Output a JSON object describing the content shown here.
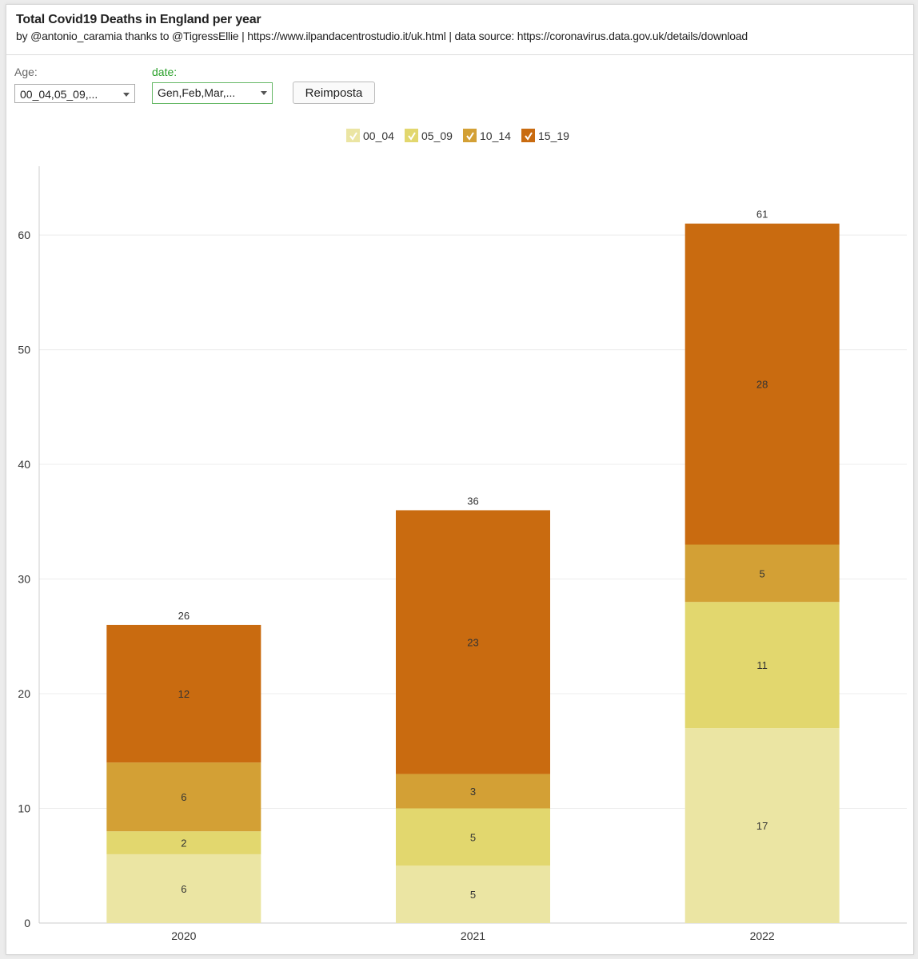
{
  "header": {
    "title": "Total Covid19 Deaths in England per year",
    "subtitle": "by @antonio_caramia thanks to @TigressEllie | https://www.ilpandacentrostudio.it/uk.html | data source: https://coronavirus.data.gov.uk/details/download"
  },
  "filters": {
    "age_label": "Age:",
    "age_value": "00_04,05_09,...",
    "date_label": "date:",
    "date_value": "Gen,Feb,Mar,...",
    "reset_label": "Reimposta"
  },
  "colors": {
    "00_04": "#ebe5a3",
    "05_09": "#e2d76e",
    "10_14": "#d3a035",
    "15_19": "#c96b10",
    "grid": "#ececec",
    "axis": "#cccccc"
  },
  "chart_data": {
    "type": "bar",
    "stacked": true,
    "title": "Total Covid19 Deaths in England per year",
    "categories": [
      "2020",
      "2021",
      "2022"
    ],
    "series": [
      {
        "name": "00_04",
        "values": [
          6,
          5,
          17
        ]
      },
      {
        "name": "05_09",
        "values": [
          2,
          5,
          11
        ]
      },
      {
        "name": "10_14",
        "values": [
          6,
          3,
          5
        ]
      },
      {
        "name": "15_19",
        "values": [
          12,
          23,
          28
        ]
      }
    ],
    "totals": [
      26,
      36,
      61
    ],
    "ylim": [
      0,
      66
    ],
    "yticks": [
      0,
      10,
      20,
      30,
      40,
      50,
      60
    ],
    "legend_position": "top-center",
    "grid": true,
    "xlabel": "",
    "ylabel": ""
  }
}
